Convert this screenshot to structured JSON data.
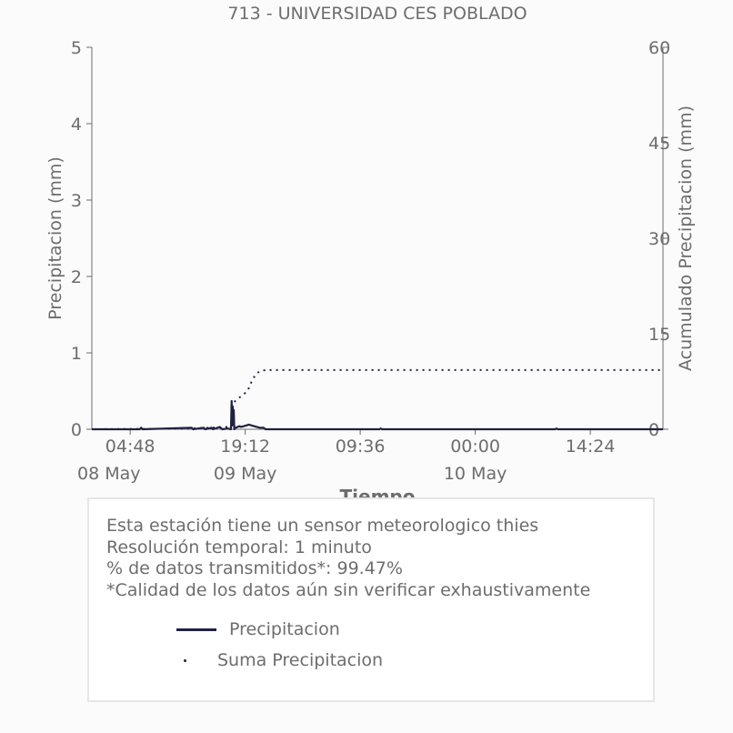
{
  "chart_data": {
    "type": "line",
    "title": "713 - UNIVERSIDAD CES POBLADO",
    "xlabel": "Tiempo",
    "ylabel_left": "Precipitacion (mm)",
    "ylabel_right": "Acumulado Precipitacion (mm)",
    "ylim_left": [
      0,
      5
    ],
    "ylim_right": [
      0,
      60
    ],
    "yticks_left": [
      "0",
      "1",
      "2",
      "3",
      "4",
      "5"
    ],
    "yticks_right": [
      "0",
      "15",
      "30",
      "45",
      "60"
    ],
    "x_range": [
      "2024-05-08 00:00",
      "2024-05-10 23:30"
    ],
    "xticks": [
      {
        "time": "2024-05-08 04:48",
        "label": "04:48",
        "date_label": ""
      },
      {
        "time": "2024-05-08 19:12",
        "label": "19:12",
        "date_label": "09 May"
      },
      {
        "time": "2024-05-09 09:36",
        "label": "09:36",
        "date_label": ""
      },
      {
        "time": "2024-05-10 00:00",
        "label": "00:00",
        "date_label": "10 May"
      },
      {
        "time": "2024-05-10 14:24",
        "label": "14:24",
        "date_label": ""
      }
    ],
    "first_date_label": "08 May",
    "grid": false,
    "series": [
      {
        "name": "Precipitacion",
        "style": "solid",
        "color": "#1f2240",
        "axis": "left",
        "points": [
          [
            "2024-05-08 00:00",
            0
          ],
          [
            "2024-05-08 06:00",
            0
          ],
          [
            "2024-05-08 06:10",
            0.02
          ],
          [
            "2024-05-08 06:20",
            0
          ],
          [
            "2024-05-08 12:30",
            0.02
          ],
          [
            "2024-05-08 12:40",
            0
          ],
          [
            "2024-05-08 14:00",
            0.02
          ],
          [
            "2024-05-08 14:10",
            0
          ],
          [
            "2024-05-08 15:00",
            0.02
          ],
          [
            "2024-05-08 15:10",
            0
          ],
          [
            "2024-05-08 16:00",
            0.03
          ],
          [
            "2024-05-08 16:20",
            0
          ],
          [
            "2024-05-08 17:00",
            0.01
          ],
          [
            "2024-05-08 17:25",
            0
          ],
          [
            "2024-05-08 17:30",
            0.37
          ],
          [
            "2024-05-08 17:34",
            0.05
          ],
          [
            "2024-05-08 17:38",
            0.3
          ],
          [
            "2024-05-08 17:42",
            0.1
          ],
          [
            "2024-05-08 17:46",
            0.25
          ],
          [
            "2024-05-08 17:50",
            0
          ],
          [
            "2024-05-08 18:00",
            0.02
          ],
          [
            "2024-05-08 18:30",
            0.04
          ],
          [
            "2024-05-08 18:40",
            0.03
          ],
          [
            "2024-05-08 19:00",
            0.04
          ],
          [
            "2024-05-08 19:20",
            0.05
          ],
          [
            "2024-05-08 19:40",
            0.06
          ],
          [
            "2024-05-08 20:00",
            0.05
          ],
          [
            "2024-05-08 20:20",
            0.04
          ],
          [
            "2024-05-08 20:40",
            0.03
          ],
          [
            "2024-05-08 21:00",
            0.02
          ],
          [
            "2024-05-08 21:30",
            0.02
          ],
          [
            "2024-05-08 21:45",
            0
          ],
          [
            "2024-05-09 12:00",
            0
          ],
          [
            "2024-05-09 12:10",
            0.01
          ],
          [
            "2024-05-09 12:20",
            0
          ],
          [
            "2024-05-10 10:00",
            0
          ],
          [
            "2024-05-10 10:10",
            0.01
          ],
          [
            "2024-05-10 10:20",
            0
          ],
          [
            "2024-05-10 23:30",
            0
          ]
        ]
      },
      {
        "name": "Suma Precipitacion",
        "style": "dotted",
        "color": "#1f2240",
        "axis": "right",
        "points": [
          [
            "2024-05-08 00:00",
            0
          ],
          [
            "2024-05-08 12:00",
            0.1
          ],
          [
            "2024-05-08 16:00",
            0.3
          ],
          [
            "2024-05-08 17:30",
            0.4
          ],
          [
            "2024-05-08 17:35",
            4.0
          ],
          [
            "2024-05-08 17:50",
            4.3
          ],
          [
            "2024-05-08 18:30",
            5.0
          ],
          [
            "2024-05-08 19:30",
            6.0
          ],
          [
            "2024-05-08 20:00",
            7.5
          ],
          [
            "2024-05-08 20:30",
            8.6
          ],
          [
            "2024-05-08 21:00",
            9.1
          ],
          [
            "2024-05-08 21:45",
            9.3
          ],
          [
            "2024-05-10 23:30",
            9.3
          ]
        ]
      }
    ]
  },
  "info": {
    "line1": "Esta estación tiene un sensor meteorologico thies",
    "line2": "Resolución temporal: 1 minuto",
    "line3": "% de datos transmitidos*: 99.47%",
    "line4": "*Calidad de los datos aún sin verificar exhaustivamente"
  },
  "legend": {
    "item1": "Precipitacion",
    "item2": "Suma Precipitacion"
  }
}
